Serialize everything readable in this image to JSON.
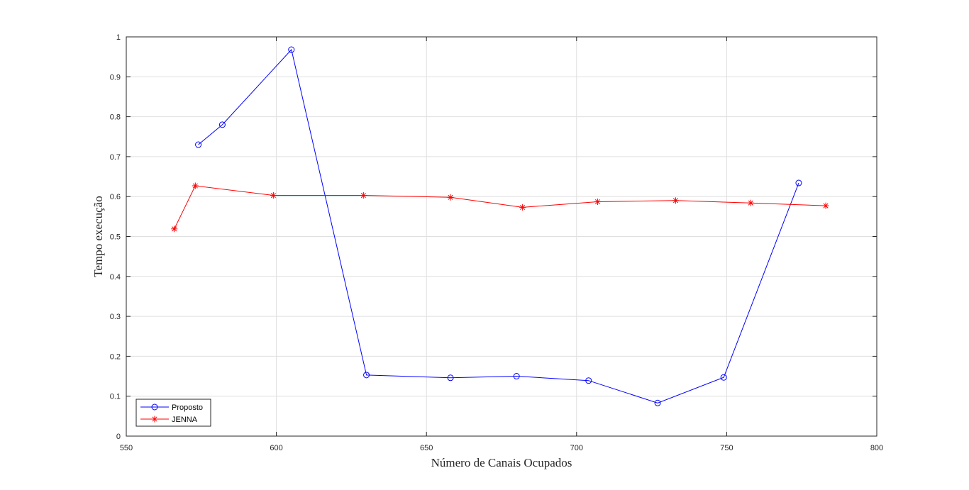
{
  "chart_data": {
    "type": "line",
    "xlabel": "Número de Canais Ocupados",
    "ylabel": "Tempo execução",
    "xlim": [
      550,
      800
    ],
    "ylim": [
      0,
      1
    ],
    "xticks": [
      "550",
      "600",
      "650",
      "700",
      "750",
      "800"
    ],
    "yticks": [
      "0",
      "0.1",
      "0.2",
      "0.3",
      "0.4",
      "0.5",
      "0.6",
      "0.7",
      "0.8",
      "0.9",
      "1"
    ],
    "grid": true,
    "legend_position": "bottom-left",
    "series": [
      {
        "name": "Proposto",
        "color": "#0000ff",
        "marker": "circle",
        "x": [
          574,
          582,
          605,
          630,
          658,
          680,
          704,
          727,
          749,
          774
        ],
        "y": [
          0.73,
          0.78,
          0.968,
          0.153,
          0.146,
          0.15,
          0.139,
          0.083,
          0.147,
          0.634
        ]
      },
      {
        "name": "JENNA",
        "color": "#ff0000",
        "marker": "asterisk",
        "x": [
          566,
          573,
          599,
          629,
          658,
          682,
          707,
          733,
          758,
          783
        ],
        "y": [
          0.519,
          0.627,
          0.603,
          0.603,
          0.598,
          0.573,
          0.587,
          0.59,
          0.584,
          0.577
        ]
      }
    ]
  }
}
